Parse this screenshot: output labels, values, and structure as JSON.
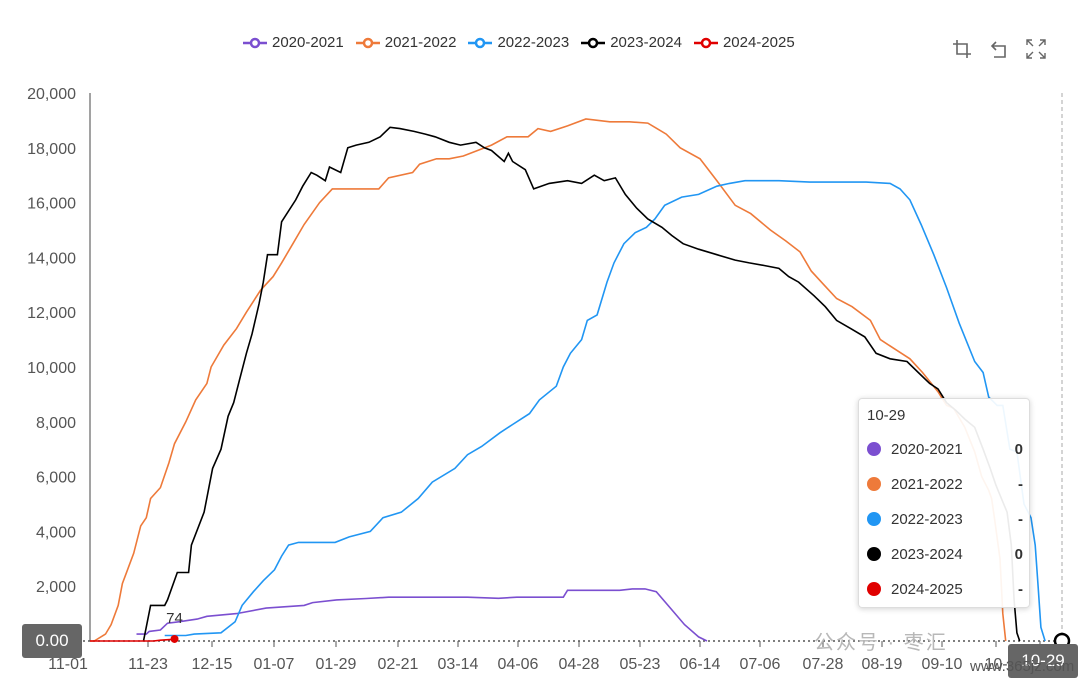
{
  "legend": [
    {
      "name": "2020-2021",
      "color": "#7b4fd0"
    },
    {
      "name": "2021-2022",
      "color": "#ee7a3a"
    },
    {
      "name": "2022-2023",
      "color": "#2196f3"
    },
    {
      "name": "2023-2024",
      "color": "#000000"
    },
    {
      "name": "2024-2025",
      "color": "#e00000"
    }
  ],
  "toolbox": [
    "crop-icon",
    "undo-icon",
    "expand-icon"
  ],
  "tooltip": {
    "title": "10-29",
    "rows": [
      {
        "name": "2020-2021",
        "value": "0",
        "color": "#7b4fd0"
      },
      {
        "name": "2021-2022",
        "value": "-",
        "color": "#ee7a3a"
      },
      {
        "name": "2022-2023",
        "value": "-",
        "color": "#2196f3"
      },
      {
        "name": "2023-2024",
        "value": "0",
        "color": "#000000"
      },
      {
        "name": "2024-2025",
        "value": "-",
        "color": "#e00000"
      }
    ]
  },
  "axis_pointer": {
    "y_label": "0.00",
    "x_label": "10-29"
  },
  "watermark": {
    "text": "公众号 · 枣汇",
    "site": "www.365jz.com"
  },
  "chart_data": {
    "type": "line",
    "title": "",
    "xlabel": "",
    "ylabel": "",
    "x_ticks": [
      "11-01",
      "11-23",
      "12-15",
      "01-07",
      "01-29",
      "02-21",
      "03-14",
      "04-06",
      "04-28",
      "05-23",
      "06-14",
      "07-06",
      "07-28",
      "08-19",
      "09-10",
      "10-",
      "10-29"
    ],
    "ylim": [
      0,
      20000
    ],
    "y_ticks": [
      "0",
      "2,000",
      "4,000",
      "6,000",
      "8,000",
      "10,000",
      "12,000",
      "14,000",
      "16,000",
      "18,000",
      "20,000"
    ],
    "grid": false,
    "legend_position": "top",
    "annotations": [
      {
        "tick": 5,
        "value": 74,
        "text": "74",
        "series": "2024-2025"
      }
    ],
    "series": [
      {
        "name": "2020-2021",
        "points": [
          [
            3.3,
            250
          ],
          [
            4.0,
            250
          ],
          [
            4.2,
            350
          ],
          [
            5.0,
            400
          ],
          [
            5.5,
            650
          ],
          [
            6.3,
            700
          ],
          [
            7.6,
            800
          ],
          [
            8.3,
            900
          ],
          [
            10.4,
            1000
          ],
          [
            12.5,
            1200
          ],
          [
            15.2,
            1300
          ],
          [
            15.8,
            1400
          ],
          [
            17.5,
            1500
          ],
          [
            19.6,
            1550
          ],
          [
            21.2,
            1600
          ],
          [
            23.1,
            1600
          ],
          [
            26.8,
            1600
          ],
          [
            29.0,
            1560
          ],
          [
            30.3,
            1600
          ],
          [
            33.6,
            1600
          ],
          [
            33.9,
            1850
          ],
          [
            37.6,
            1850
          ],
          [
            38.5,
            1900
          ],
          [
            39.4,
            1900
          ],
          [
            40.2,
            1800
          ],
          [
            41.2,
            1200
          ],
          [
            42.2,
            600
          ],
          [
            43.2,
            150
          ],
          [
            43.8,
            0
          ]
        ]
      },
      {
        "name": "2021-2022",
        "points": [
          [
            0,
            0
          ],
          [
            0.3,
            0
          ],
          [
            1.1,
            250
          ],
          [
            1.5,
            600
          ],
          [
            2.0,
            1300
          ],
          [
            2.3,
            2100
          ],
          [
            3.1,
            3200
          ],
          [
            3.6,
            4200
          ],
          [
            4.0,
            4500
          ],
          [
            4.3,
            5200
          ],
          [
            5.0,
            5600
          ],
          [
            5.6,
            6500
          ],
          [
            6.0,
            7200
          ],
          [
            6.8,
            8000
          ],
          [
            7.5,
            8800
          ],
          [
            8.3,
            9400
          ],
          [
            8.6,
            10000
          ],
          [
            9.5,
            10800
          ],
          [
            10.4,
            11400
          ],
          [
            11.1,
            12000
          ],
          [
            12.1,
            12800
          ],
          [
            13.0,
            13300
          ],
          [
            13.6,
            13800
          ],
          [
            14.4,
            14500
          ],
          [
            15.2,
            15200
          ],
          [
            16.3,
            16000
          ],
          [
            17.2,
            16500
          ],
          [
            20.5,
            16500
          ],
          [
            21.2,
            16900
          ],
          [
            22.9,
            17100
          ],
          [
            23.4,
            17400
          ],
          [
            24.6,
            17600
          ],
          [
            25.5,
            17600
          ],
          [
            26.5,
            17700
          ],
          [
            28.5,
            18100
          ],
          [
            29.6,
            18400
          ],
          [
            31.1,
            18400
          ],
          [
            31.8,
            18700
          ],
          [
            32.7,
            18600
          ],
          [
            33.9,
            18800
          ],
          [
            35.2,
            19050
          ],
          [
            36.9,
            18950
          ],
          [
            38.3,
            18950
          ],
          [
            39.6,
            18900
          ],
          [
            40.9,
            18500
          ],
          [
            41.9,
            18000
          ],
          [
            43.3,
            17600
          ],
          [
            44.5,
            16800
          ],
          [
            45.8,
            15900
          ],
          [
            46.9,
            15600
          ],
          [
            48.3,
            15000
          ],
          [
            49.4,
            14600
          ],
          [
            50.4,
            14200
          ],
          [
            51.2,
            13500
          ],
          [
            52.1,
            13000
          ],
          [
            53.0,
            12500
          ],
          [
            54.1,
            12200
          ],
          [
            55.4,
            11700
          ],
          [
            56.1,
            11000
          ],
          [
            57.3,
            10600
          ],
          [
            58.2,
            10300
          ],
          [
            59.1,
            9800
          ],
          [
            60.2,
            9100
          ],
          [
            60.8,
            8600
          ],
          [
            61.3,
            8500
          ],
          [
            62.1,
            7800
          ],
          [
            62.8,
            6900
          ],
          [
            63.3,
            6000
          ],
          [
            63.8,
            5500
          ],
          [
            64.0,
            5200
          ],
          [
            64.2,
            4500
          ],
          [
            64.6,
            3000
          ],
          [
            64.8,
            1000
          ],
          [
            65.0,
            0
          ]
        ]
      },
      {
        "name": "2022-2023",
        "points": [
          [
            5.3,
            200
          ],
          [
            6.8,
            200
          ],
          [
            7.4,
            250
          ],
          [
            9.3,
            300
          ],
          [
            9.8,
            500
          ],
          [
            10.3,
            700
          ],
          [
            10.8,
            1300
          ],
          [
            11.6,
            1800
          ],
          [
            12.3,
            2200
          ],
          [
            13.1,
            2600
          ],
          [
            13.6,
            3100
          ],
          [
            14.1,
            3500
          ],
          [
            14.8,
            3600
          ],
          [
            16.6,
            3600
          ],
          [
            17.4,
            3600
          ],
          [
            18.4,
            3800
          ],
          [
            19.9,
            4000
          ],
          [
            20.8,
            4500
          ],
          [
            22.1,
            4700
          ],
          [
            23.3,
            5200
          ],
          [
            24.3,
            5800
          ],
          [
            25.9,
            6300
          ],
          [
            26.8,
            6800
          ],
          [
            27.8,
            7100
          ],
          [
            29.1,
            7600
          ],
          [
            30.0,
            7900
          ],
          [
            31.2,
            8300
          ],
          [
            31.9,
            8800
          ],
          [
            33.1,
            9300
          ],
          [
            33.6,
            10000
          ],
          [
            34.1,
            10500
          ],
          [
            34.9,
            11000
          ],
          [
            35.3,
            11700
          ],
          [
            36.0,
            11900
          ],
          [
            36.7,
            13100
          ],
          [
            37.2,
            13800
          ],
          [
            37.9,
            14500
          ],
          [
            38.7,
            14900
          ],
          [
            39.5,
            15100
          ],
          [
            40.1,
            15400
          ],
          [
            40.8,
            15900
          ],
          [
            42.0,
            16200
          ],
          [
            43.2,
            16300
          ],
          [
            44.5,
            16600
          ],
          [
            45.4,
            16700
          ],
          [
            46.5,
            16800
          ],
          [
            48.9,
            16800
          ],
          [
            51.1,
            16750
          ],
          [
            55.1,
            16750
          ],
          [
            56.8,
            16700
          ],
          [
            57.5,
            16500
          ],
          [
            58.2,
            16100
          ],
          [
            59.0,
            15200
          ],
          [
            59.9,
            14100
          ],
          [
            60.8,
            12900
          ],
          [
            61.7,
            11600
          ],
          [
            62.8,
            10200
          ],
          [
            63.4,
            9800
          ],
          [
            63.8,
            8900
          ],
          [
            64.4,
            8600
          ],
          [
            64.8,
            8600
          ],
          [
            65.3,
            7000
          ],
          [
            65.8,
            6900
          ],
          [
            66.3,
            5000
          ],
          [
            66.8,
            4500
          ],
          [
            67.1,
            3500
          ],
          [
            67.3,
            2000
          ],
          [
            67.5,
            500
          ],
          [
            67.8,
            0
          ]
        ]
      },
      {
        "name": "2023-2024",
        "points": [
          [
            3.8,
            0
          ],
          [
            4.3,
            1300
          ],
          [
            5.3,
            1300
          ],
          [
            5.5,
            1500
          ],
          [
            6.2,
            2500
          ],
          [
            7.0,
            2500
          ],
          [
            7.2,
            3500
          ],
          [
            8.1,
            4700
          ],
          [
            8.7,
            6300
          ],
          [
            9.3,
            7000
          ],
          [
            9.8,
            8200
          ],
          [
            10.2,
            8700
          ],
          [
            10.6,
            9500
          ],
          [
            11.1,
            10500
          ],
          [
            11.5,
            11200
          ],
          [
            12.0,
            12300
          ],
          [
            12.3,
            13100
          ],
          [
            12.6,
            14100
          ],
          [
            13.3,
            14100
          ],
          [
            13.6,
            15300
          ],
          [
            14.6,
            16100
          ],
          [
            15.1,
            16600
          ],
          [
            15.7,
            17100
          ],
          [
            16.1,
            17000
          ],
          [
            16.7,
            16800
          ],
          [
            17.0,
            17300
          ],
          [
            17.8,
            17100
          ],
          [
            18.3,
            18000
          ],
          [
            18.9,
            18100
          ],
          [
            19.8,
            18200
          ],
          [
            20.6,
            18400
          ],
          [
            21.3,
            18750
          ],
          [
            22.0,
            18700
          ],
          [
            23.0,
            18600
          ],
          [
            23.8,
            18500
          ],
          [
            24.5,
            18400
          ],
          [
            25.5,
            18200
          ],
          [
            26.3,
            18100
          ],
          [
            27.4,
            18200
          ],
          [
            28.0,
            18000
          ],
          [
            28.5,
            17900
          ],
          [
            29.4,
            17500
          ],
          [
            29.7,
            17800
          ],
          [
            30.0,
            17500
          ],
          [
            30.9,
            17200
          ],
          [
            31.5,
            16500
          ],
          [
            32.6,
            16700
          ],
          [
            33.9,
            16800
          ],
          [
            34.9,
            16700
          ],
          [
            35.8,
            17000
          ],
          [
            36.5,
            16800
          ],
          [
            37.3,
            16900
          ],
          [
            38.0,
            16300
          ],
          [
            38.8,
            15800
          ],
          [
            39.6,
            15400
          ],
          [
            40.6,
            15100
          ],
          [
            41.3,
            14800
          ],
          [
            42.1,
            14500
          ],
          [
            43.2,
            14300
          ],
          [
            44.5,
            14100
          ],
          [
            45.8,
            13900
          ],
          [
            46.8,
            13800
          ],
          [
            47.9,
            13700
          ],
          [
            48.9,
            13600
          ],
          [
            49.6,
            13300
          ],
          [
            50.3,
            13100
          ],
          [
            51.4,
            12600
          ],
          [
            52.2,
            12200
          ],
          [
            53.0,
            11700
          ],
          [
            54.0,
            11400
          ],
          [
            55.0,
            11100
          ],
          [
            55.8,
            10500
          ],
          [
            56.8,
            10300
          ],
          [
            58.0,
            10200
          ],
          [
            58.8,
            9800
          ],
          [
            59.6,
            9400
          ],
          [
            60.2,
            9200
          ],
          [
            60.8,
            8700
          ],
          [
            61.5,
            8400
          ],
          [
            62.1,
            8100
          ],
          [
            62.8,
            7800
          ],
          [
            63.4,
            7000
          ],
          [
            63.9,
            6300
          ],
          [
            64.3,
            5700
          ],
          [
            64.7,
            5200
          ],
          [
            65.1,
            4700
          ],
          [
            65.4,
            3500
          ],
          [
            65.6,
            1500
          ],
          [
            65.8,
            300
          ],
          [
            66.0,
            0
          ]
        ]
      },
      {
        "name": "2024-2025",
        "points": [
          [
            0,
            0
          ],
          [
            4.5,
            0
          ],
          [
            5.0,
            30
          ],
          [
            5.8,
            60
          ],
          [
            6.0,
            74
          ]
        ]
      }
    ]
  }
}
